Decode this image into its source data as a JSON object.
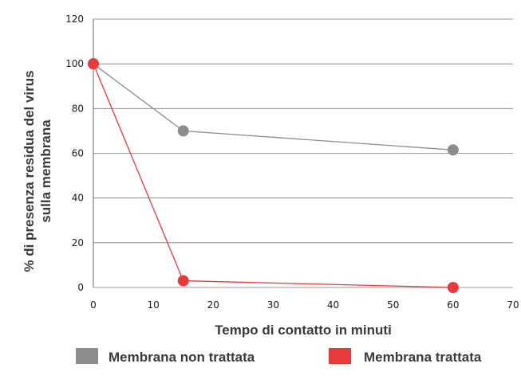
{
  "chart_data": {
    "type": "line",
    "xlabel": "Tempo di contatto in minuti",
    "ylabel_lines": [
      "% di presenza residua del virus",
      "sulla membrana"
    ],
    "xlim": [
      0,
      70
    ],
    "ylim": [
      0,
      120
    ],
    "x_ticks": [
      0,
      10,
      20,
      30,
      40,
      50,
      60,
      70
    ],
    "y_ticks": [
      0,
      20,
      40,
      60,
      80,
      100,
      120
    ],
    "grid": "horizontal",
    "legend_position": "bottom",
    "series": [
      {
        "name": "Membrana non trattata",
        "color": "#8c8c8f",
        "x": [
          0,
          15,
          60
        ],
        "y": [
          100,
          70,
          61.5
        ]
      },
      {
        "name": "Membrana trattata",
        "color": "#e8393b",
        "x": [
          0,
          15,
          60
        ],
        "y": [
          100,
          3,
          0
        ]
      }
    ]
  }
}
